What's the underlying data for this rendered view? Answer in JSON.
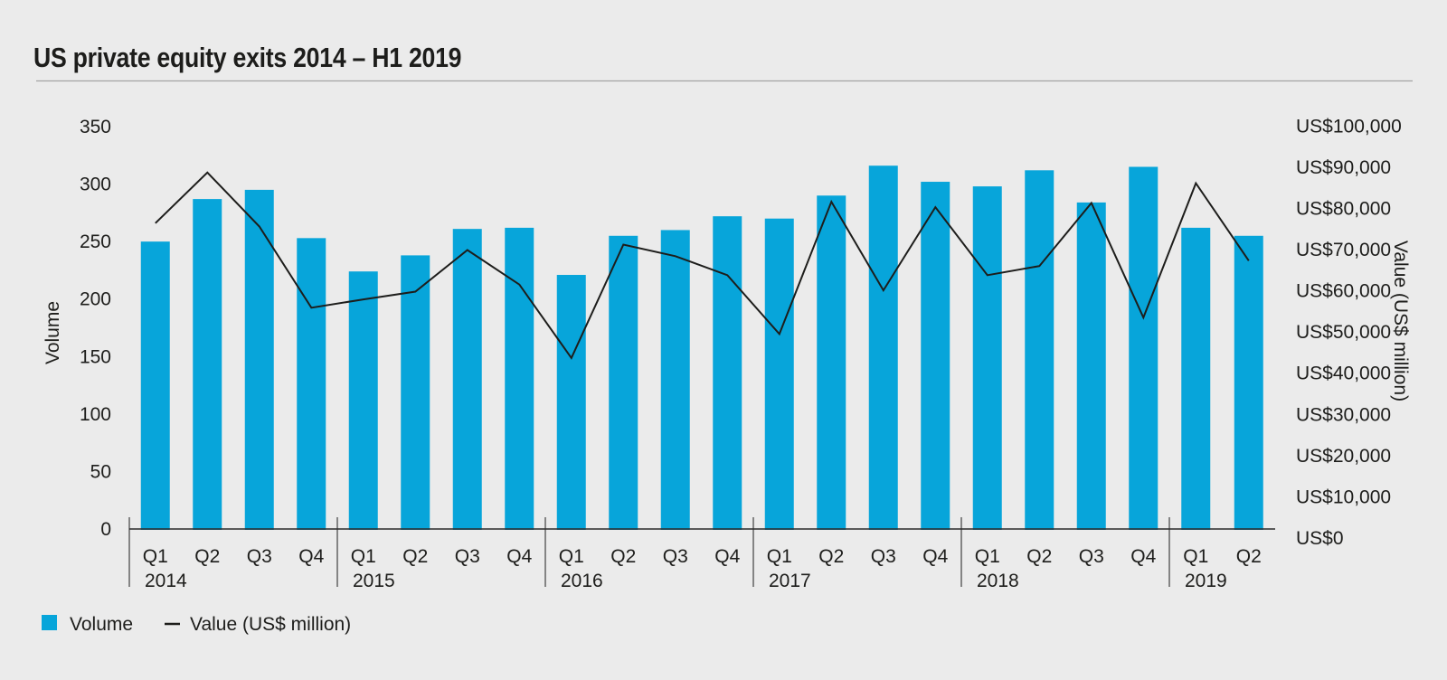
{
  "title": "US private equity exits 2014 – H1 2019",
  "colors": {
    "background": "#ebebeb",
    "bar": "#07a5da",
    "line": "#1d1d1b",
    "text": "#1d1d1b",
    "axis_line": "#2b2b2b",
    "year_separator": "#4d4d4d",
    "title_rule": "#a3a3a3"
  },
  "legend": {
    "items": [
      {
        "label": "Volume",
        "marker": "square"
      },
      {
        "label": "Value (US$ million)",
        "marker": "line"
      }
    ]
  },
  "left_axis": {
    "title": "Volume",
    "min": 0,
    "max": 350,
    "ticks": [
      0,
      50,
      100,
      150,
      200,
      250,
      300,
      350
    ]
  },
  "right_axis": {
    "title": "Value (US$ million)",
    "min": 0,
    "max": 100000,
    "ticks": [
      {
        "value": 0,
        "label": "US$0"
      },
      {
        "value": 10000,
        "label": "US$10,000"
      },
      {
        "value": 20000,
        "label": "US$20,000"
      },
      {
        "value": 30000,
        "label": "US$30,000"
      },
      {
        "value": 40000,
        "label": "US$40,000"
      },
      {
        "value": 50000,
        "label": "US$50,000"
      },
      {
        "value": 60000,
        "label": "US$60,000"
      },
      {
        "value": 70000,
        "label": "US$70,000"
      },
      {
        "value": 80000,
        "label": "US$80,000"
      },
      {
        "value": 90000,
        "label": "US$90,000"
      },
      {
        "value": 100000,
        "label": "US$100,000"
      }
    ]
  },
  "chart_data": {
    "type": "combo-bar-line",
    "grid": "off",
    "legend_position": "bottom-left",
    "year_groups": [
      {
        "year": "2014",
        "quarters": [
          "Q1",
          "Q2",
          "Q3",
          "Q4"
        ]
      },
      {
        "year": "2015",
        "quarters": [
          "Q1",
          "Q2",
          "Q3",
          "Q4"
        ]
      },
      {
        "year": "2016",
        "quarters": [
          "Q1",
          "Q2",
          "Q3",
          "Q4"
        ]
      },
      {
        "year": "2017",
        "quarters": [
          "Q1",
          "Q2",
          "Q3",
          "Q4"
        ]
      },
      {
        "year": "2018",
        "quarters": [
          "Q1",
          "Q2",
          "Q3",
          "Q4"
        ]
      },
      {
        "year": "2019",
        "quarters": [
          "Q1",
          "Q2"
        ]
      }
    ],
    "series": [
      {
        "name": "Volume",
        "type": "bar",
        "axis": "left",
        "values": [
          250,
          287,
          295,
          253,
          224,
          238,
          261,
          262,
          221,
          255,
          260,
          272,
          270,
          290,
          316,
          302,
          298,
          312,
          284,
          315,
          262,
          255
        ]
      },
      {
        "name": "Value (US$ million)",
        "type": "line",
        "axis": "right",
        "values": [
          76400,
          88700,
          75600,
          55900,
          57900,
          59800,
          69900,
          61500,
          43700,
          71200,
          68400,
          63800,
          49500,
          81600,
          60100,
          80300,
          63800,
          66000,
          81300,
          53500,
          86100,
          67300
        ]
      }
    ]
  }
}
